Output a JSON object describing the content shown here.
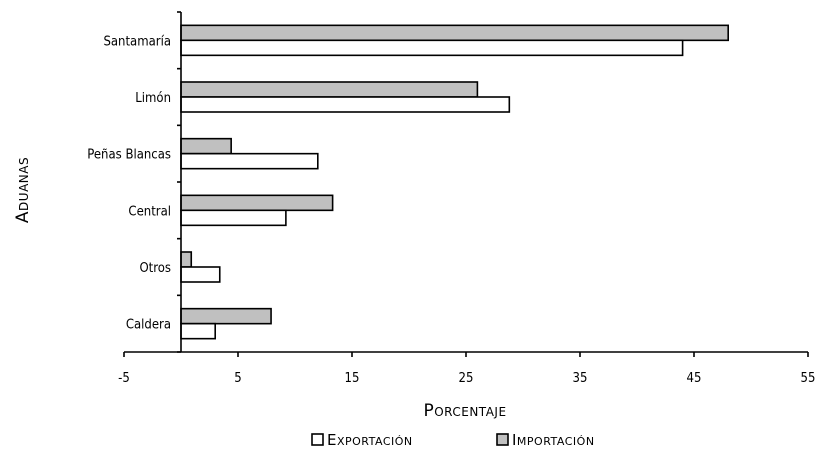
{
  "chart_data": {
    "type": "bar",
    "orientation": "horizontal",
    "title": "",
    "xlabel": "Porcentaje",
    "ylabel": "Aduanas",
    "xlim": [
      -5,
      55
    ],
    "xticks": [
      -5,
      5,
      15,
      25,
      35,
      45,
      55
    ],
    "categories": [
      "Santamaría",
      "Limón",
      "Peñas Blancas",
      "Central",
      "Otros",
      "Caldera"
    ],
    "series": [
      {
        "name": "Importación",
        "color": "#c0c0c0",
        "values": [
          48,
          26,
          4.4,
          13.3,
          0.9,
          7.9
        ]
      },
      {
        "name": "Exportación",
        "color": "#ffffff",
        "values": [
          44,
          28.8,
          12,
          9.2,
          3.4,
          3
        ]
      }
    ],
    "legend": {
      "position": "bottom",
      "order": [
        "Exportación",
        "Importación"
      ]
    },
    "grid": false
  }
}
